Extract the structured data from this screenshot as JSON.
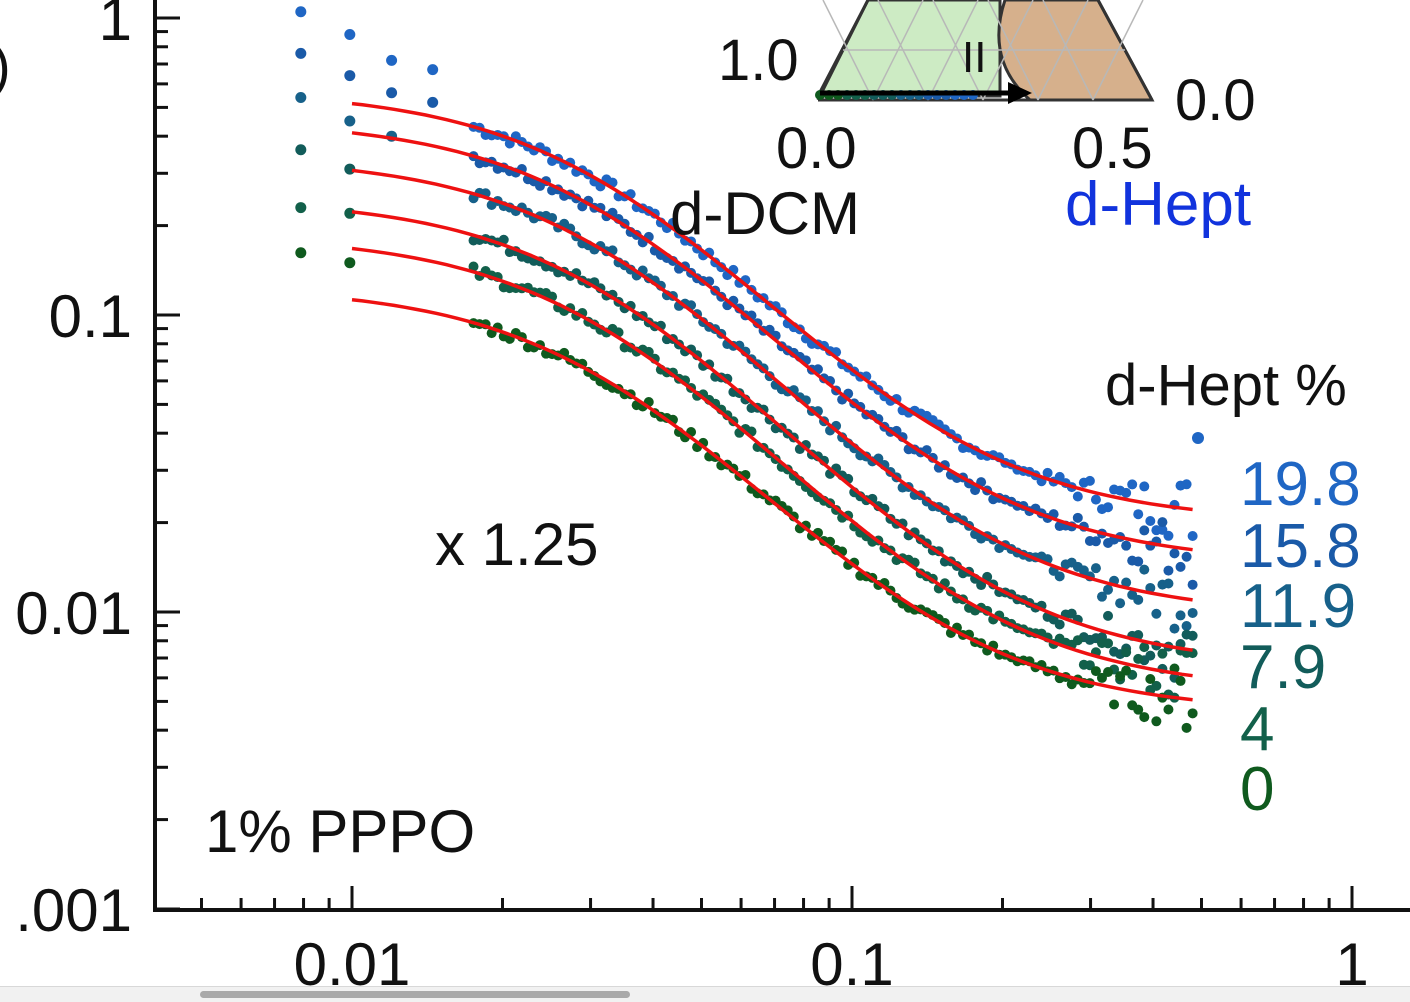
{
  "chart_data": {
    "type": "scatter",
    "x_scale": "log",
    "y_scale": "log",
    "xlim": [
      0.005,
      1
    ],
    "ylim": [
      0.001,
      1
    ],
    "x_ticks": [
      {
        "value": 0.01,
        "label": "0.01"
      },
      {
        "value": 0.1,
        "label": "0.1"
      },
      {
        "value": 1,
        "label": "1"
      }
    ],
    "y_ticks": [
      {
        "value": 0.001,
        "label": ".001"
      },
      {
        "value": 0.01,
        "label": "0.01"
      },
      {
        "value": 0.1,
        "label": "0.1"
      },
      {
        "value": 1,
        "label": "1"
      }
    ],
    "ylabel_visible_fragment": ")",
    "legend_title": "d-Hept %",
    "scale_note": "x 1.25",
    "sample_label": "1% PPPO",
    "grid": false,
    "fit_color": "#ee1111",
    "series": [
      {
        "name": "19.8",
        "color": "#1f66c4",
        "I0": 0.55,
        "xi": 0.03,
        "bkg": 0.02,
        "lowq_points": [
          [
            0.0079,
            1.05
          ],
          [
            0.0099,
            0.88
          ],
          [
            0.012,
            0.72
          ],
          [
            0.0145,
            0.67
          ]
        ]
      },
      {
        "name": "15.8",
        "color": "#1a5aa8",
        "I0": 0.44,
        "xi": 0.03,
        "bkg": 0.0145,
        "lowq_points": [
          [
            0.0079,
            0.76
          ],
          [
            0.0099,
            0.64
          ],
          [
            0.012,
            0.56
          ],
          [
            0.0145,
            0.52
          ]
        ]
      },
      {
        "name": "11.9",
        "color": "#17618a",
        "I0": 0.33,
        "xi": 0.03,
        "bkg": 0.0097,
        "lowq_points": [
          [
            0.0079,
            0.54
          ],
          [
            0.0099,
            0.45
          ],
          [
            0.012,
            0.4
          ]
        ]
      },
      {
        "name": "7.9",
        "color": "#125c5a",
        "I0": 0.24,
        "xi": 0.03,
        "bkg": 0.0065,
        "lowq_points": [
          [
            0.0079,
            0.36
          ],
          [
            0.0099,
            0.31
          ]
        ]
      },
      {
        "name": "4",
        "color": "#12604a",
        "I0": 0.18,
        "xi": 0.03,
        "bkg": 0.0054,
        "lowq_points": [
          [
            0.0079,
            0.23
          ],
          [
            0.0099,
            0.22
          ]
        ]
      },
      {
        "name": "0",
        "color": "#0f5a1e",
        "I0": 0.12,
        "xi": 0.03,
        "bkg": 0.0046,
        "lowq_points": [
          [
            0.0079,
            0.162
          ],
          [
            0.0099,
            0.15
          ]
        ]
      }
    ],
    "fit_x_range": [
      0.01,
      0.48
    ],
    "inset": {
      "labels": {
        "left_value": "1.0",
        "right_value": "0.0",
        "bottom_left": "0.0",
        "bottom_right": "0.5",
        "bottom_axis": "d-DCM",
        "right_axis": "d-Hept",
        "region": "II"
      },
      "colors": {
        "single_phase": "#cdebc4",
        "two_phase": "#d6b08c",
        "right_axis": "#1133dd"
      }
    }
  }
}
